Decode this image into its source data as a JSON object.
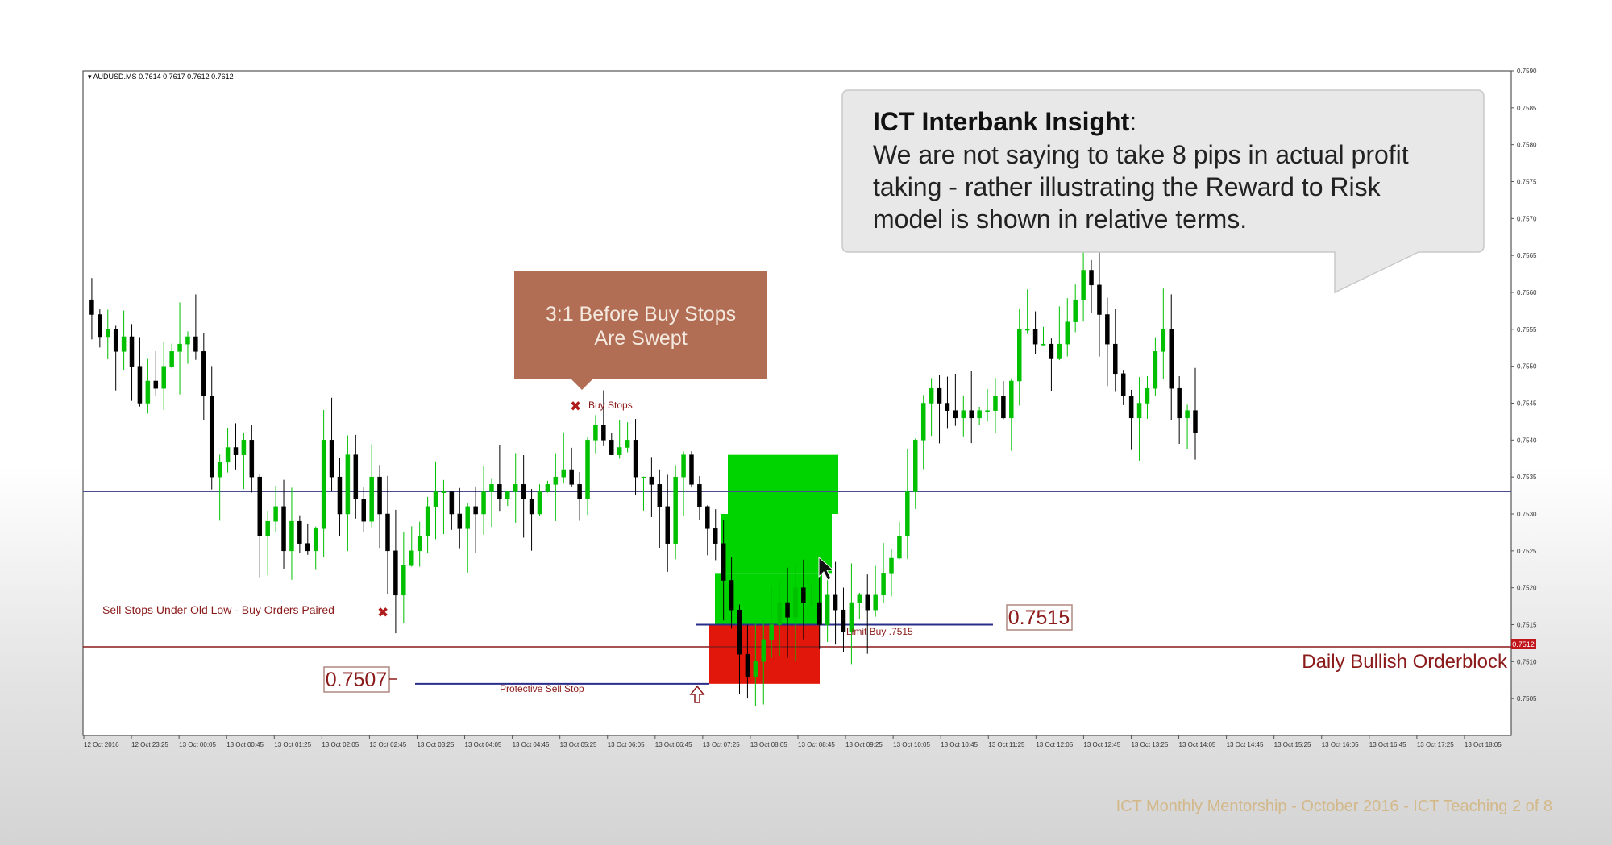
{
  "chart_header": {
    "symbol": "AUDUSD.MS",
    "ohlc": "0.7614 0.7617 0.7612 0.7612"
  },
  "callout_insight": {
    "title": "ICT Interbank Insight",
    "title_suffix": ":",
    "lines": [
      "We are not saying to take 8 pips in actual profit",
      "taking - rather illustrating the Reward to Risk",
      "model is shown in relative terms."
    ]
  },
  "callout_ratio": {
    "lines": [
      "3:1 Before Buy Stops",
      "Are Swept"
    ]
  },
  "annotations": {
    "buy_stops": "Buy Stops",
    "sell_stops": "Sell Stops Under Old Low - Buy Orders Paired",
    "limit_buy": "Limit Buy .7515",
    "protective_stop": "Protective Sell Stop",
    "price_box_right": "0.7515",
    "price_box_left": "0.7507",
    "orderblock": "Daily Bullish Orderblock",
    "current_price_tag": "0.7512"
  },
  "footer": "ICT Monthly Mentorship - October 2016 - ICT Teaching 2 of 8",
  "colors": {
    "up_candle": "#00c000",
    "down_candle": "#000000",
    "reward_zone": "#00d400",
    "risk_zone": "#e2170c",
    "ratio_box": "#b26e55",
    "orderblock_line": "#8b1a1a",
    "level_line": "#2a2e8a",
    "annotation_text": "#8b1a1a"
  },
  "chart_data": {
    "type": "candlestick",
    "symbol": "AUDUSD.MS",
    "ylim": [
      0.75,
      0.759
    ],
    "y_ticks": [
      "0.7590",
      "0.7585",
      "0.7580",
      "0.7575",
      "0.7570",
      "0.7565",
      "0.7560",
      "0.7555",
      "0.7550",
      "0.7545",
      "0.7540",
      "0.7535",
      "0.7530",
      "0.7525",
      "0.7520",
      "0.7515",
      "0.7510",
      "0.7505"
    ],
    "x_ticks": [
      "12 Oct 2016",
      "12 Oct 23:25",
      "13 Oct 00:05",
      "13 Oct 00:45",
      "13 Oct 01:25",
      "13 Oct 02:05",
      "13 Oct 02:45",
      "13 Oct 03:25",
      "13 Oct 04:05",
      "13 Oct 04:45",
      "13 Oct 05:25",
      "13 Oct 06:05",
      "13 Oct 06:45",
      "13 Oct 07:25",
      "13 Oct 08:05",
      "13 Oct 08:45",
      "13 Oct 09:25",
      "13 Oct 10:05",
      "13 Oct 10:45",
      "13 Oct 11:25",
      "13 Oct 12:05",
      "13 Oct 12:45",
      "13 Oct 13:25",
      "13 Oct 14:05",
      "13 Oct 14:45",
      "13 Oct 15:25",
      "13 Oct 16:05",
      "13 Oct 16:45",
      "13 Oct 17:25",
      "13 Oct 18:05"
    ],
    "horizontal_lines": [
      {
        "name": "Daily Bullish Orderblock",
        "value": 0.7512
      },
      {
        "name": "Limit Buy",
        "value": 0.7515
      },
      {
        "name": "Protective Sell Stop",
        "value": 0.7507
      },
      {
        "name": "level",
        "value": 0.7533
      }
    ],
    "zones": [
      {
        "name": "reward",
        "from": 0.7515,
        "to": 0.7538
      },
      {
        "name": "risk",
        "from": 0.7507,
        "to": 0.7515
      }
    ],
    "close_path": [
      0.7559,
      0.7557,
      0.7554,
      0.7555,
      0.7552,
      0.7554,
      0.755,
      0.7545,
      0.7548,
      0.7547,
      0.755,
      0.7552,
      0.7553,
      0.7554,
      0.7552,
      0.7546,
      0.7535,
      0.7537,
      0.7539,
      0.7538,
      0.754,
      0.7535,
      0.7527,
      0.7529,
      0.7531,
      0.7525,
      0.7529,
      0.7526,
      0.7525,
      0.7528,
      0.754,
      0.7535,
      0.753,
      0.7538,
      0.7532,
      0.7529,
      0.7535,
      0.753,
      0.7525,
      0.7519,
      0.7523,
      0.7525,
      0.7527,
      0.7531,
      0.7533,
      0.7533,
      0.753,
      0.7528,
      0.7531,
      0.753,
      0.7533,
      0.7534,
      0.7532,
      0.7533,
      0.7534,
      0.7532,
      0.753,
      0.7533,
      0.7534,
      0.7535,
      0.7536,
      0.7534,
      0.7532,
      0.754,
      0.7542,
      0.754,
      0.7538,
      0.7539,
      0.754,
      0.7535,
      0.7535,
      0.7534,
      0.7531,
      0.7526,
      0.7535,
      0.7538,
      0.7534,
      0.7531,
      0.7528,
      0.7526,
      0.7521,
      0.7517,
      0.7511,
      0.7508,
      0.751,
      0.7513,
      0.7515,
      0.7518,
      0.7516,
      0.752,
      0.7518,
      0.7518,
      0.7515,
      0.7519,
      0.7517,
      0.7514,
      0.7518,
      0.7519,
      0.7517,
      0.7519,
      0.7522,
      0.7524,
      0.7527,
      0.7533,
      0.754,
      0.7545,
      0.7547,
      0.7545,
      0.7544,
      0.7543,
      0.7544,
      0.7543,
      0.7544,
      0.7544,
      0.7546,
      0.7543,
      0.7548,
      0.7555,
      0.7555,
      0.7553,
      0.7553,
      0.7551,
      0.7553,
      0.7556,
      0.7559,
      0.7563,
      0.7561,
      0.7557,
      0.7553,
      0.7549,
      0.7546,
      0.7543,
      0.7545,
      0.7547,
      0.7552,
      0.7555,
      0.7547,
      0.7543,
      0.7544,
      0.7541
    ]
  }
}
